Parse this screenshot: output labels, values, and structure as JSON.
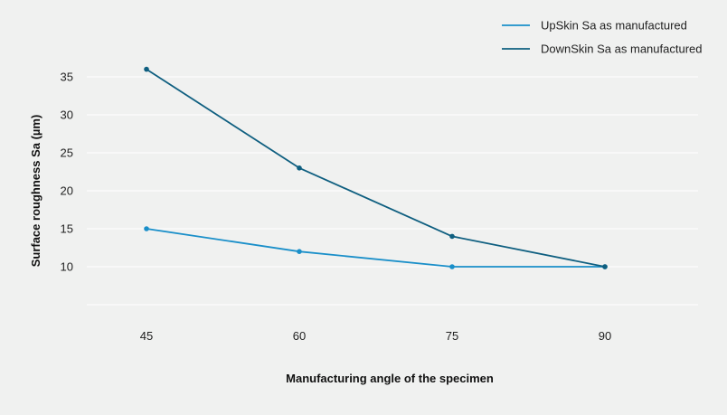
{
  "chart_data": {
    "type": "line",
    "title": "",
    "xlabel": "Manufacturing angle of the specimen",
    "ylabel": "Surface roughness Sa (µm)",
    "categories": [
      "45",
      "60",
      "75",
      "90"
    ],
    "x": [
      45,
      60,
      75,
      90
    ],
    "yticks": [
      10,
      15,
      20,
      25,
      30,
      35
    ],
    "ylim": [
      5,
      38.5
    ],
    "grid": true,
    "legend": "top-right",
    "series": [
      {
        "name": "UpSkin Sa as manufactured",
        "values": [
          15,
          12,
          10,
          10
        ],
        "color": "#1a8fc9"
      },
      {
        "name": "DownSkin Sa as manufactured",
        "values": [
          36,
          23,
          14,
          10
        ],
        "color": "#0f5f80"
      }
    ]
  }
}
